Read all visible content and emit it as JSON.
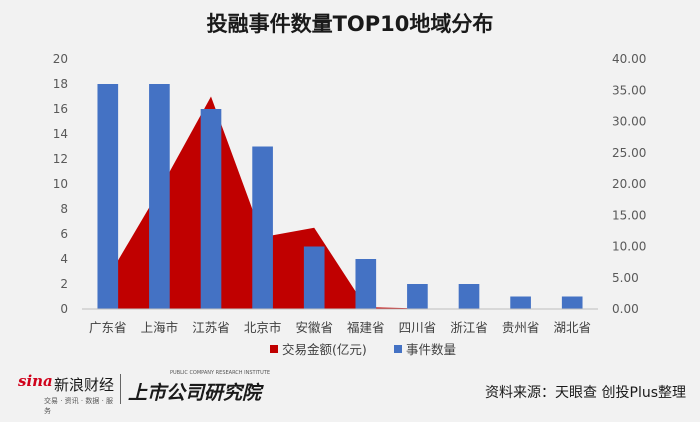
{
  "chart_data": {
    "type": "bar",
    "title": "投融事件数量TOP10地域分布",
    "categories": [
      "广东省",
      "上海市",
      "江苏省",
      "北京市",
      "安徽省",
      "福建省",
      "四川省",
      "浙江省",
      "贵州省",
      "湖北省"
    ],
    "series": [
      {
        "name": "交易金额(亿元)",
        "type": "area",
        "axis": "right",
        "color": "#c00000",
        "values": [
          5.0,
          19.0,
          34.0,
          11.5,
          13.0,
          0.3,
          0.1,
          0.0,
          0.0,
          0.0
        ]
      },
      {
        "name": "事件数量",
        "type": "bar",
        "axis": "left",
        "color": "#4472c4",
        "values": [
          18,
          18,
          16,
          13,
          5,
          4,
          2,
          2,
          1,
          1
        ]
      }
    ],
    "ylim_left": [
      0,
      20
    ],
    "yticks_left": [
      "0",
      "2",
      "4",
      "6",
      "8",
      "10",
      "12",
      "14",
      "16",
      "18",
      "20"
    ],
    "ylim_right": [
      0,
      40
    ],
    "yticks_right": [
      "0.00",
      "5.00",
      "10.00",
      "15.00",
      "20.00",
      "25.00",
      "30.00",
      "35.00",
      "40.00"
    ],
    "legend_position": "bottom",
    "grid": false
  },
  "footer": {
    "sina_brand": "sina",
    "sina_name": "新浪财经",
    "sina_sub": "交易 · 资讯 · 数据 · 服务",
    "research_sub": "PUBLIC COMPANY RESEARCH INSTITUTE",
    "research_name": "上市公司研究院",
    "source": "资料来源：天眼查 创投Plus整理"
  }
}
